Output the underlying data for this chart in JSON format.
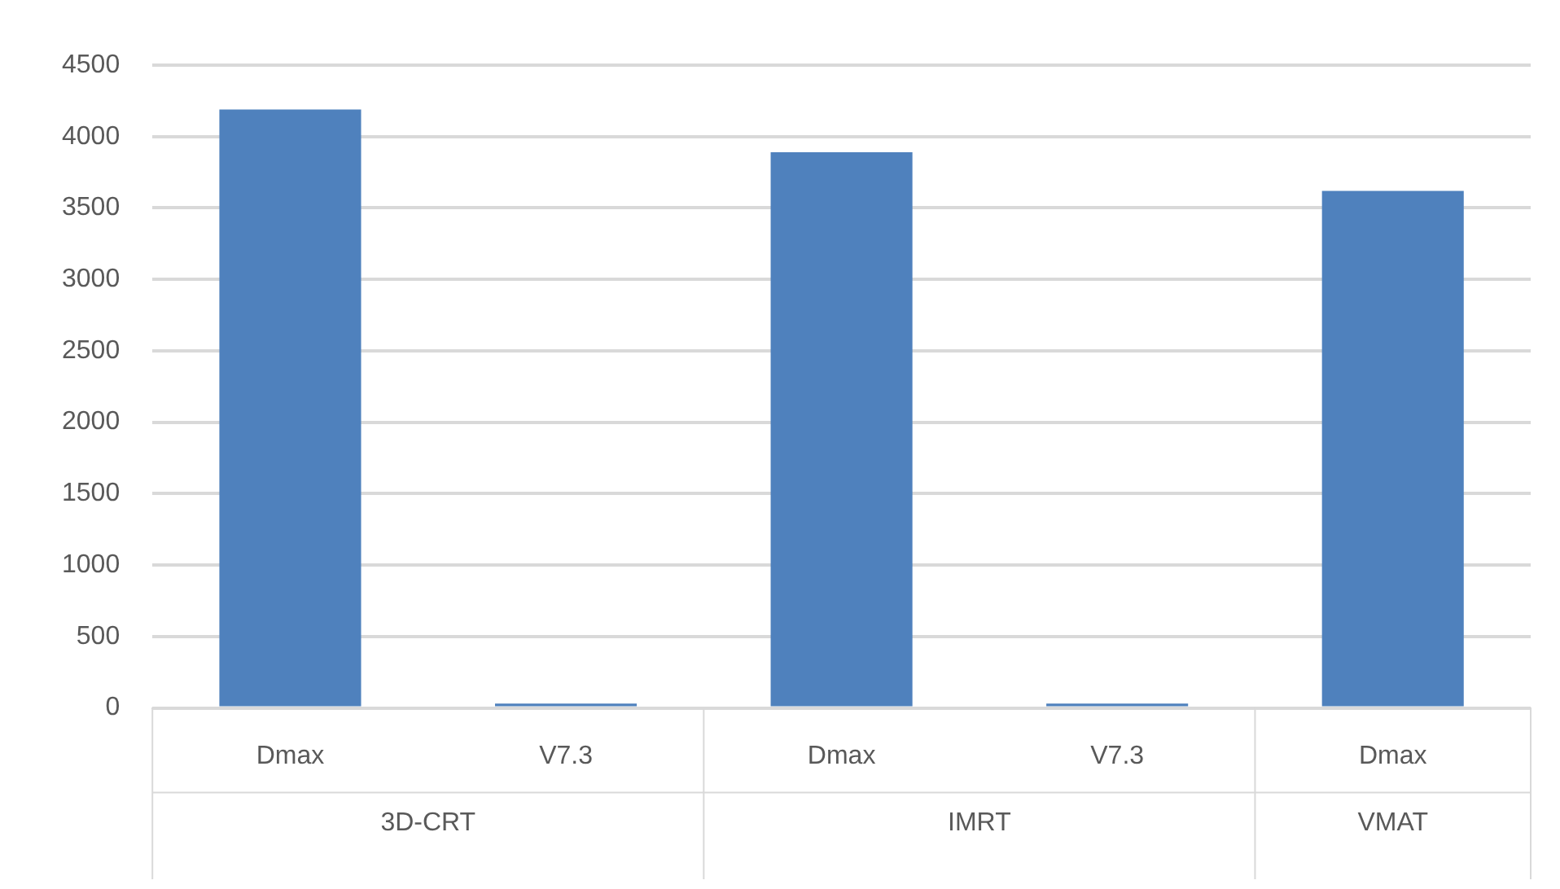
{
  "chart_data": {
    "type": "bar",
    "categories": [
      "Dmax",
      "V7.3",
      "Dmax",
      "V7.3",
      "Dmax"
    ],
    "values": [
      4190,
      30,
      3890,
      30,
      3620
    ],
    "color": "#4f81bd",
    "ylim": [
      0,
      4500
    ],
    "yticks": [
      0,
      500,
      1000,
      1500,
      2000,
      2500,
      3000,
      3500,
      4000,
      4500
    ],
    "grid": "y",
    "legend": false,
    "annotations": [
      "3D-CRT",
      "IMRT",
      "VMAT"
    ]
  }
}
